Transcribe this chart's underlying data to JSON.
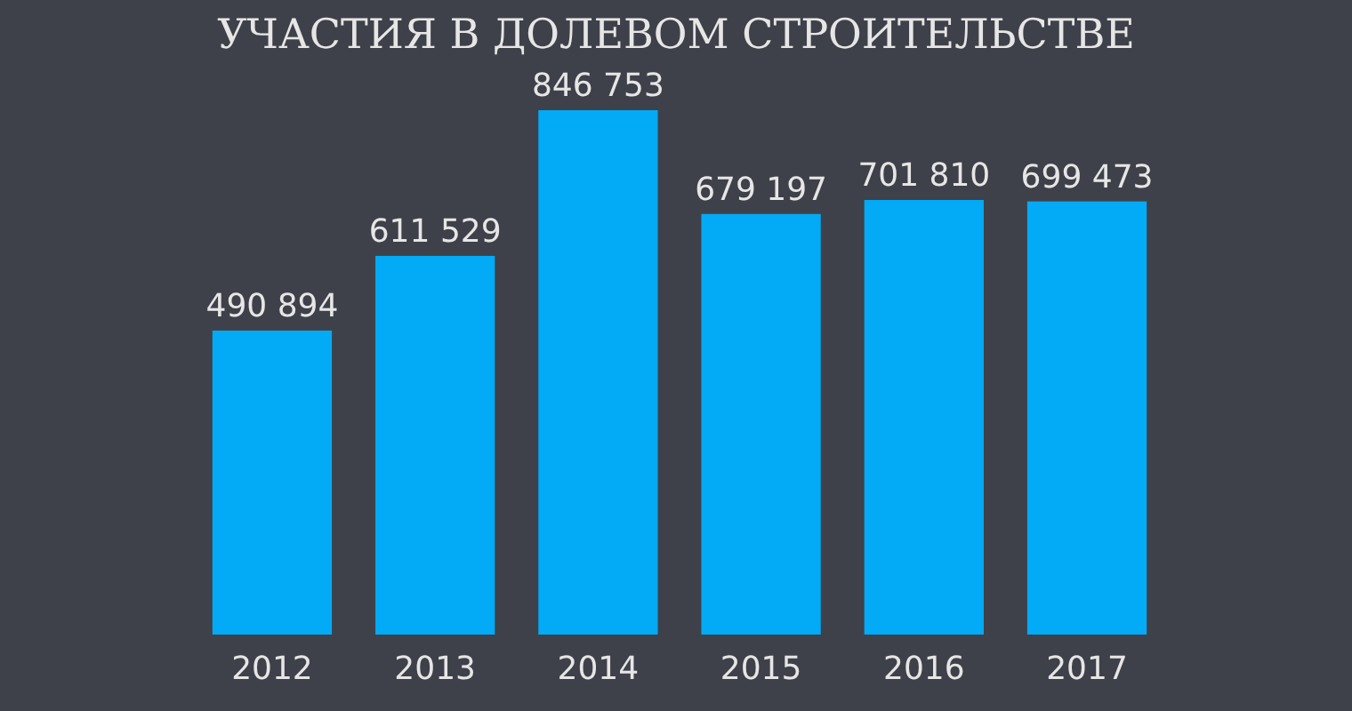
{
  "chart_data": {
    "type": "bar",
    "title": "УЧАСТИЯ В ДОЛЕВОМ СТРОИТЕЛЬСТВЕ",
    "categories": [
      "2012",
      "2013",
      "2014",
      "2015",
      "2016",
      "2017"
    ],
    "values": [
      490894,
      611529,
      846753,
      679197,
      701810,
      699473
    ],
    "value_labels": [
      "490 894",
      "611 529",
      "846 753",
      "679 197",
      "701 810",
      "699 473"
    ],
    "color": "#03aaf5"
  }
}
